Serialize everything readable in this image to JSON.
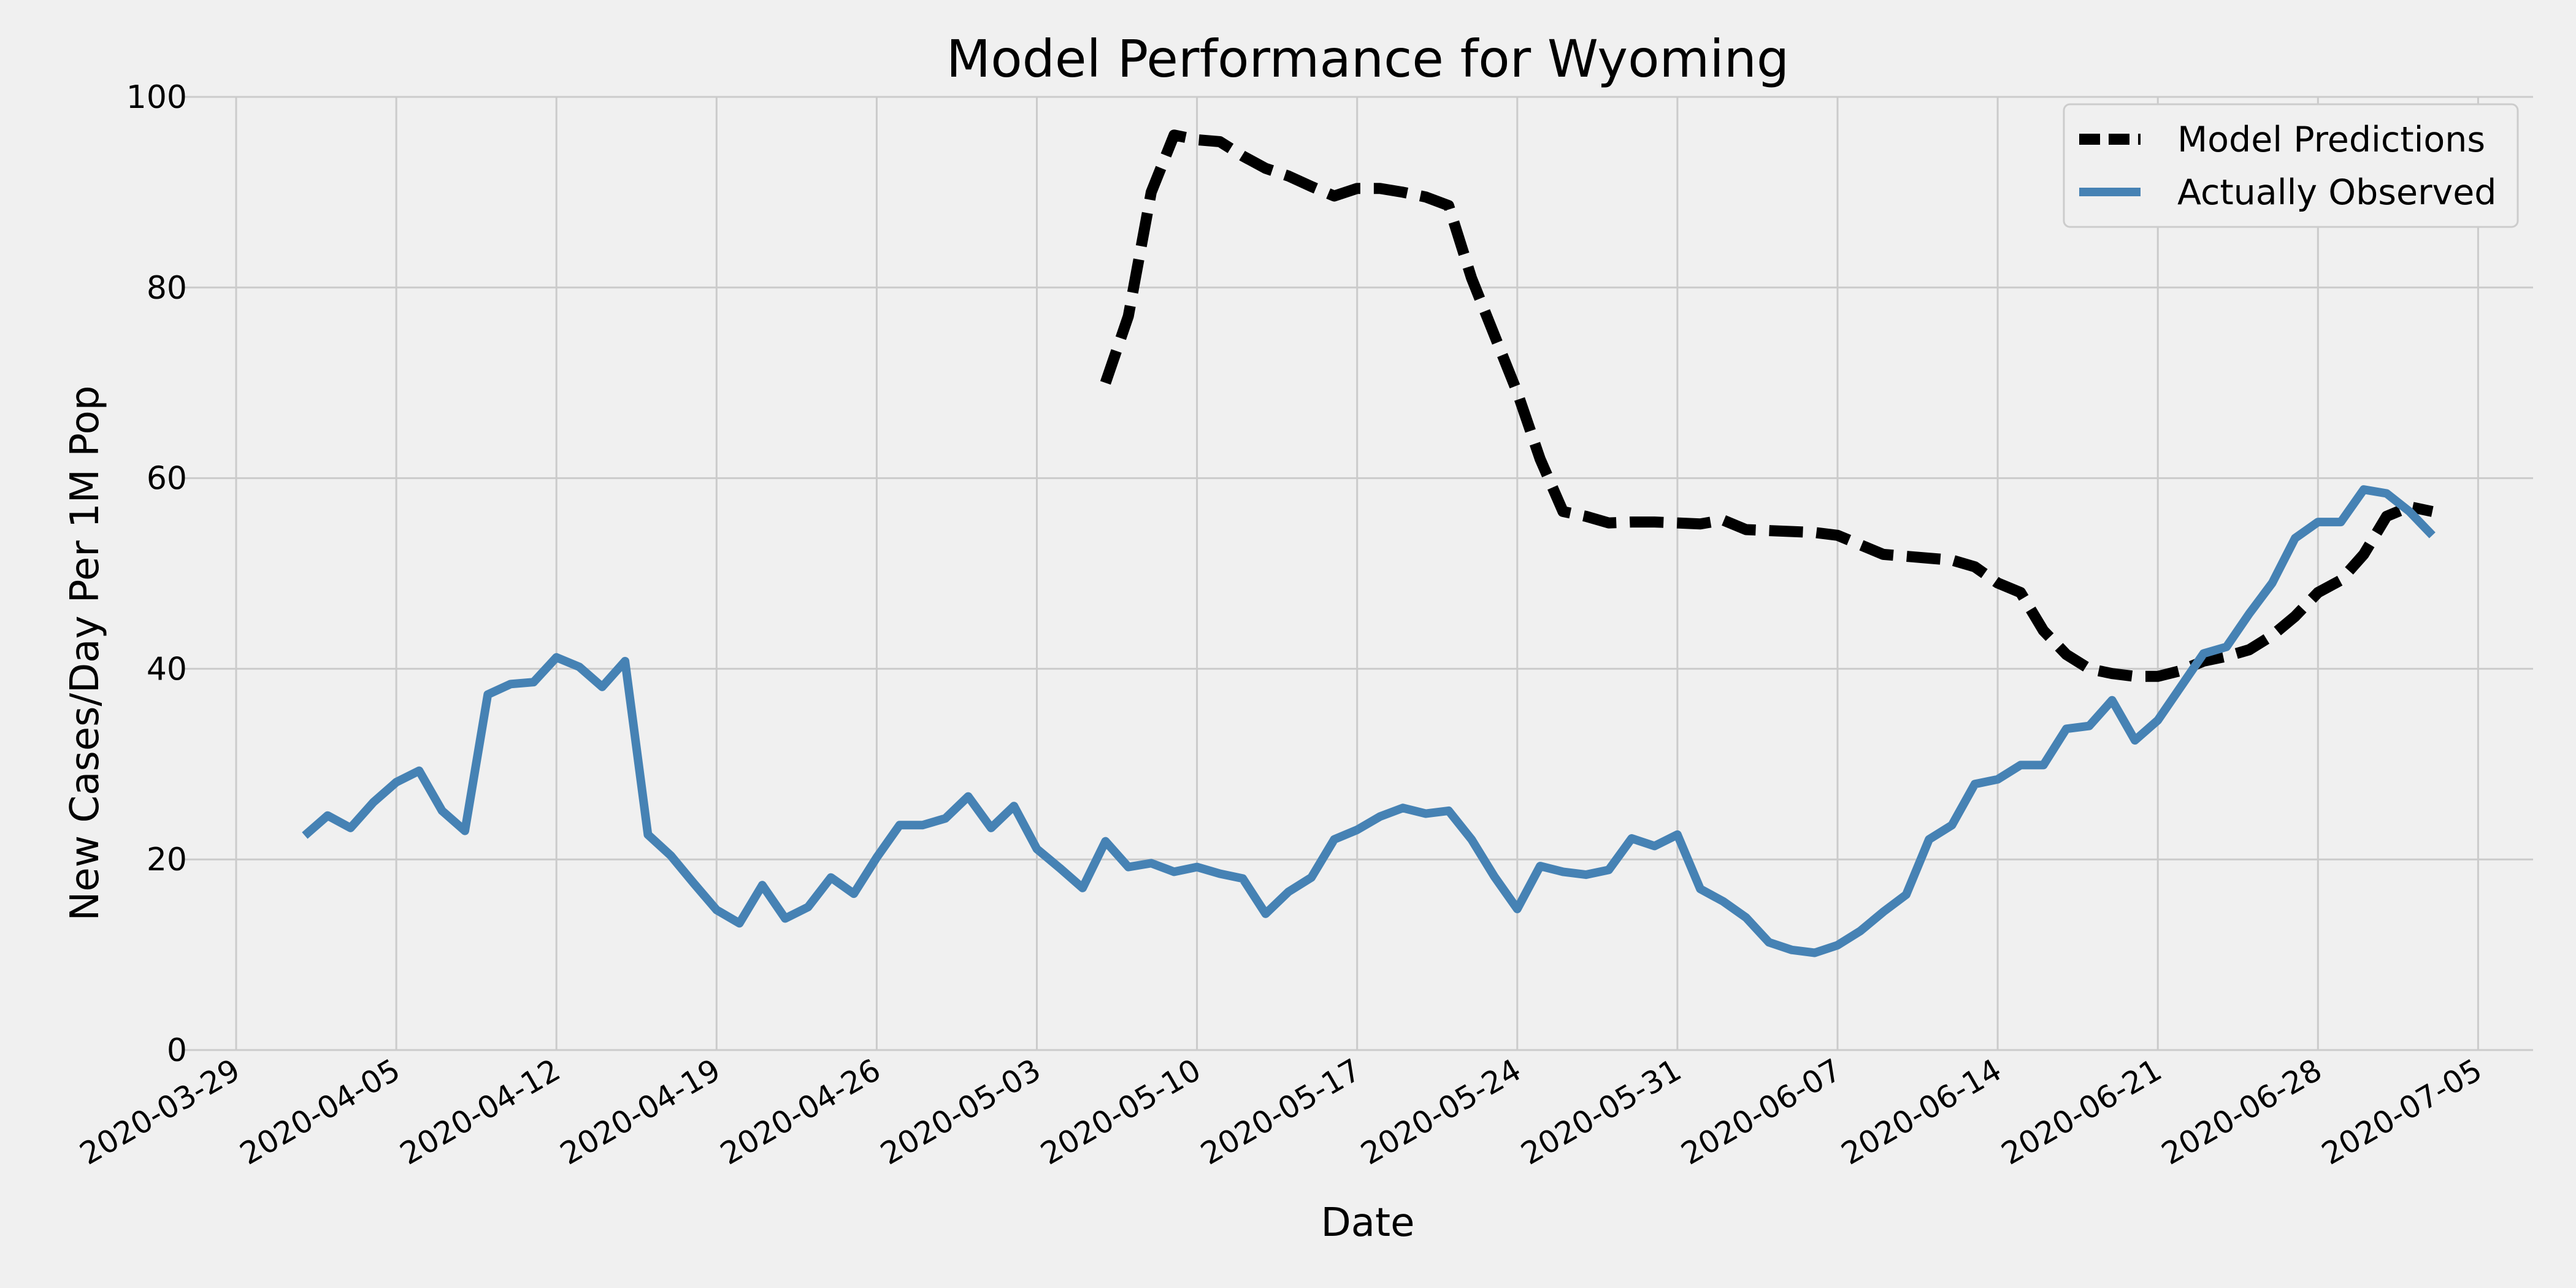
{
  "chart_data": {
    "type": "line",
    "title": "Model Performance for Wyoming",
    "xlabel": "Date",
    "ylabel": "New Cases/Day Per 1M Pop",
    "ylim": [
      0,
      100
    ],
    "yticks": [
      0,
      20,
      40,
      60,
      80,
      100
    ],
    "xlim": [
      "2020-03-29",
      "2020-07-05"
    ],
    "xticks": [
      "2020-03-29",
      "2020-04-05",
      "2020-04-12",
      "2020-04-19",
      "2020-04-26",
      "2020-05-03",
      "2020-05-10",
      "2020-05-17",
      "2020-05-24",
      "2020-05-31",
      "2020-06-07",
      "2020-06-14",
      "2020-06-21",
      "2020-06-28",
      "2020-07-05"
    ],
    "grid": true,
    "legend_position": "top-right",
    "series": [
      {
        "name": "Model Predictions",
        "color": "#000000",
        "style": "dashed",
        "x": [
          "2020-05-06",
          "2020-05-07",
          "2020-05-08",
          "2020-05-09",
          "2020-05-10",
          "2020-05-11",
          "2020-05-12",
          "2020-05-13",
          "2020-05-14",
          "2020-05-15",
          "2020-05-16",
          "2020-05-17",
          "2020-05-18",
          "2020-05-19",
          "2020-05-20",
          "2020-05-21",
          "2020-05-22",
          "2020-05-23",
          "2020-05-24",
          "2020-05-25",
          "2020-05-26",
          "2020-05-27",
          "2020-05-28",
          "2020-05-29",
          "2020-05-30",
          "2020-05-31",
          "2020-06-01",
          "2020-06-02",
          "2020-06-03",
          "2020-06-04",
          "2020-06-05",
          "2020-06-06",
          "2020-06-07",
          "2020-06-08",
          "2020-06-09",
          "2020-06-10",
          "2020-06-11",
          "2020-06-12",
          "2020-06-13",
          "2020-06-14",
          "2020-06-15",
          "2020-06-16",
          "2020-06-17",
          "2020-06-18",
          "2020-06-19",
          "2020-06-20",
          "2020-06-21",
          "2020-06-22",
          "2020-06-23",
          "2020-06-24",
          "2020-06-25",
          "2020-06-26",
          "2020-06-27",
          "2020-06-28",
          "2020-06-29",
          "2020-06-30",
          "2020-07-01",
          "2020-07-02",
          "2020-07-03"
        ],
        "y": [
          70,
          77,
          90,
          96,
          95.5,
          95.3,
          93.8,
          92.5,
          91.7,
          90.6,
          89.6,
          90.4,
          90.4,
          90,
          89.5,
          88.6,
          81,
          75,
          69,
          62,
          56.5,
          56,
          55.3,
          55.4,
          55.4,
          55.3,
          55.2,
          55.6,
          54.6,
          54.5,
          54.4,
          54.3,
          54,
          53,
          52,
          51.8,
          51.6,
          51.4,
          50.7,
          49,
          48,
          44,
          41.5,
          40,
          39.5,
          39.2,
          39.2,
          39.8,
          40.8,
          41.3,
          42,
          43.5,
          45.5,
          48,
          49.3,
          52,
          56,
          57,
          56.5
        ]
      },
      {
        "name": "Actually Observed",
        "color": "#4682b4",
        "style": "solid",
        "x": [
          "2020-04-01",
          "2020-04-02",
          "2020-04-03",
          "2020-04-04",
          "2020-04-05",
          "2020-04-06",
          "2020-04-07",
          "2020-04-08",
          "2020-04-09",
          "2020-04-10",
          "2020-04-11",
          "2020-04-12",
          "2020-04-13",
          "2020-04-14",
          "2020-04-15",
          "2020-04-16",
          "2020-04-17",
          "2020-04-18",
          "2020-04-19",
          "2020-04-20",
          "2020-04-21",
          "2020-04-22",
          "2020-04-23",
          "2020-04-24",
          "2020-04-25",
          "2020-04-26",
          "2020-04-27",
          "2020-04-28",
          "2020-04-29",
          "2020-04-30",
          "2020-05-01",
          "2020-05-02",
          "2020-05-03",
          "2020-05-04",
          "2020-05-05",
          "2020-05-06",
          "2020-05-07",
          "2020-05-08",
          "2020-05-09",
          "2020-05-10",
          "2020-05-11",
          "2020-05-12",
          "2020-05-13",
          "2020-05-14",
          "2020-05-15",
          "2020-05-16",
          "2020-05-17",
          "2020-05-18",
          "2020-05-19",
          "2020-05-20",
          "2020-05-21",
          "2020-05-22",
          "2020-05-23",
          "2020-05-24",
          "2020-05-25",
          "2020-05-26",
          "2020-05-27",
          "2020-05-28",
          "2020-05-29",
          "2020-05-30",
          "2020-05-31",
          "2020-06-01",
          "2020-06-02",
          "2020-06-03",
          "2020-06-04",
          "2020-06-05",
          "2020-06-06",
          "2020-06-07",
          "2020-06-08",
          "2020-06-09",
          "2020-06-10",
          "2020-06-11",
          "2020-06-12",
          "2020-06-13",
          "2020-06-14",
          "2020-06-15",
          "2020-06-16",
          "2020-06-17",
          "2020-06-18",
          "2020-06-19",
          "2020-06-20",
          "2020-06-21",
          "2020-06-22",
          "2020-06-23",
          "2020-06-24",
          "2020-06-25",
          "2020-06-26",
          "2020-06-27",
          "2020-06-28",
          "2020-06-29",
          "2020-06-30",
          "2020-07-01",
          "2020-07-02",
          "2020-07-03"
        ],
        "y": [
          22.5,
          24.6,
          23.3,
          26,
          28.1,
          29.3,
          25.1,
          23,
          37.3,
          38.4,
          38.6,
          41.2,
          40.2,
          38.1,
          40.8,
          22.6,
          20.4,
          17.5,
          14.7,
          13.3,
          17.3,
          13.8,
          15,
          18.1,
          16.4,
          20.2,
          23.6,
          23.6,
          24.3,
          26.6,
          23.3,
          25.6,
          21.1,
          19.1,
          17,
          21.9,
          19.2,
          19.6,
          18.7,
          19.2,
          18.5,
          18,
          14.3,
          16.6,
          18.1,
          22.1,
          23.1,
          24.5,
          25.4,
          24.8,
          25.1,
          22.1,
          18.2,
          14.8,
          19.3,
          18.7,
          18.4,
          18.9,
          22.2,
          21.4,
          22.6,
          16.9,
          15.6,
          13.9,
          11.3,
          10.5,
          10.2,
          11,
          12.5,
          14.5,
          16.3,
          22.1,
          23.6,
          27.9,
          28.4,
          29.9,
          29.9,
          33.7,
          34,
          36.7,
          32.5,
          34.6,
          38.1,
          41.6,
          42.3,
          45.8,
          49,
          53.7,
          55.4,
          55.4,
          58.8,
          58.4,
          56.5,
          54
        ]
      }
    ]
  }
}
